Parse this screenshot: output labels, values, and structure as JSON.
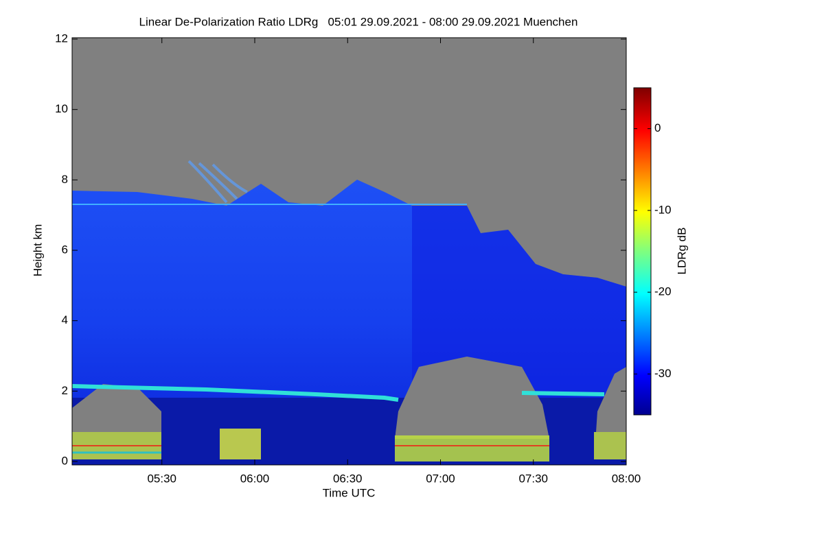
{
  "chart_data": {
    "type": "heatmap",
    "title": "Linear De-Polarization Ratio LDRg   05:01 29.09.2021 - 08:00 29.09.2021 Muenchen",
    "x_label": "Time UTC",
    "y_label": "Height km",
    "colorbar_label": "LDRg dB",
    "xlim": [
      301,
      480
    ],
    "xticks": [
      {
        "value": 330,
        "label": "05:30"
      },
      {
        "value": 360,
        "label": "06:00"
      },
      {
        "value": 390,
        "label": "06:30"
      },
      {
        "value": 420,
        "label": "07:00"
      },
      {
        "value": 450,
        "label": "07:30"
      },
      {
        "value": 480,
        "label": "08:00"
      }
    ],
    "ylim": [
      0,
      12
    ],
    "yticks": [
      0,
      2,
      4,
      6,
      8,
      10,
      12
    ],
    "clim": [
      -35,
      5
    ],
    "cticks": [
      0,
      -10,
      -20,
      -30
    ],
    "colormap": "jet"
  }
}
